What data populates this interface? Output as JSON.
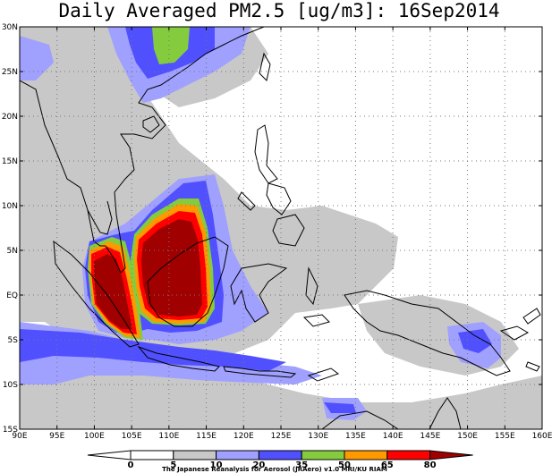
{
  "title": "Daily Averaged PM2.5 [ug/m3]: 16Sep2014",
  "credit": "The Japanese Reanalysis for Aerosol (JRAero) v1.0 MRI/KU RIAM",
  "map": {
    "lon_range": [
      90,
      160
    ],
    "lat_range": [
      -15,
      30
    ],
    "lon_ticks": [
      "90E",
      "95E",
      "100E",
      "105E",
      "110E",
      "115E",
      "120E",
      "125E",
      "130E",
      "135E",
      "140E",
      "145E",
      "150E",
      "155E",
      "160E"
    ],
    "lat_ticks": [
      "30N",
      "25N",
      "20N",
      "15N",
      "10N",
      "5N",
      "EQ",
      "5S",
      "10S",
      "15S"
    ],
    "grid": true
  },
  "colorbar": {
    "levels": [
      "0",
      "5",
      "10",
      "20",
      "35",
      "50",
      "65",
      "80"
    ],
    "colors": {
      "lt5": "#ffffff",
      "c5_10": "#ffffff",
      "c10_20": "#c8c8c8",
      "c20_35": "#a0a0ff",
      "c35_50": "#5050ff",
      "c50_65": "#84cc3e",
      "c65_80": "#ff9900",
      "c80_95": "#ff0000",
      "gt95": "#a00000"
    }
  }
}
